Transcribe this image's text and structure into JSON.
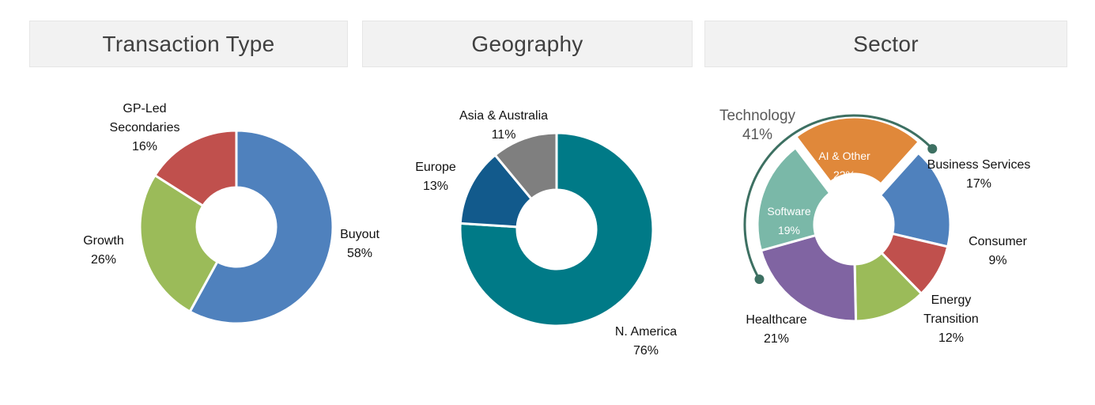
{
  "chart_data": [
    {
      "type": "pie",
      "title": "Transaction Type",
      "slices": [
        {
          "name": "Buyout",
          "label_lines": [
            "Buyout"
          ],
          "value": 58,
          "label": "58%",
          "color": "#4f81bd"
        },
        {
          "name": "Growth",
          "label_lines": [
            "Growth"
          ],
          "value": 26,
          "label": "26%",
          "color": "#9bbb59"
        },
        {
          "name": "GP-Led Secondaries",
          "label_lines": [
            "GP-Led",
            "Secondaries"
          ],
          "value": 16,
          "label": "16%",
          "color": "#c0504d"
        }
      ]
    },
    {
      "type": "pie",
      "title": "Geography",
      "slices": [
        {
          "name": "N. America",
          "label_lines": [
            "N. America"
          ],
          "value": 76,
          "label": "76%",
          "color": "#007a87"
        },
        {
          "name": "Europe",
          "label_lines": [
            "Europe"
          ],
          "value": 13,
          "label": "13%",
          "color": "#125a8c"
        },
        {
          "name": "Asia & Australia",
          "label_lines": [
            "Asia & Australia"
          ],
          "value": 11,
          "label": "11%",
          "color": "#7f7f7f"
        }
      ]
    },
    {
      "type": "pie",
      "title": "Sector",
      "slices": [
        {
          "name": "Business Services",
          "label_lines": [
            "Business Services"
          ],
          "value": 17,
          "label": "17%",
          "color": "#4f81bd"
        },
        {
          "name": "Consumer",
          "label_lines": [
            "Consumer"
          ],
          "value": 9,
          "label": "9%",
          "color": "#c0504d"
        },
        {
          "name": "Energy Transition",
          "label_lines": [
            "Energy",
            "Transition"
          ],
          "value": 12,
          "label": "12%",
          "color": "#9bbb59"
        },
        {
          "name": "Healthcare",
          "label_lines": [
            "Healthcare"
          ],
          "value": 21,
          "label": "21%",
          "color": "#8064a2"
        },
        {
          "name": "Software",
          "label_lines": [
            "Software"
          ],
          "value": 19,
          "label": "19%",
          "color": "#7ab8a8"
        },
        {
          "name": "AI & Other",
          "label_lines": [
            "AI & Other"
          ],
          "value": 22,
          "label": "22%",
          "color": "#e0883a"
        }
      ],
      "annotation": {
        "text": "Technology",
        "value": "41%",
        "color": "#3d7062"
      }
    }
  ]
}
